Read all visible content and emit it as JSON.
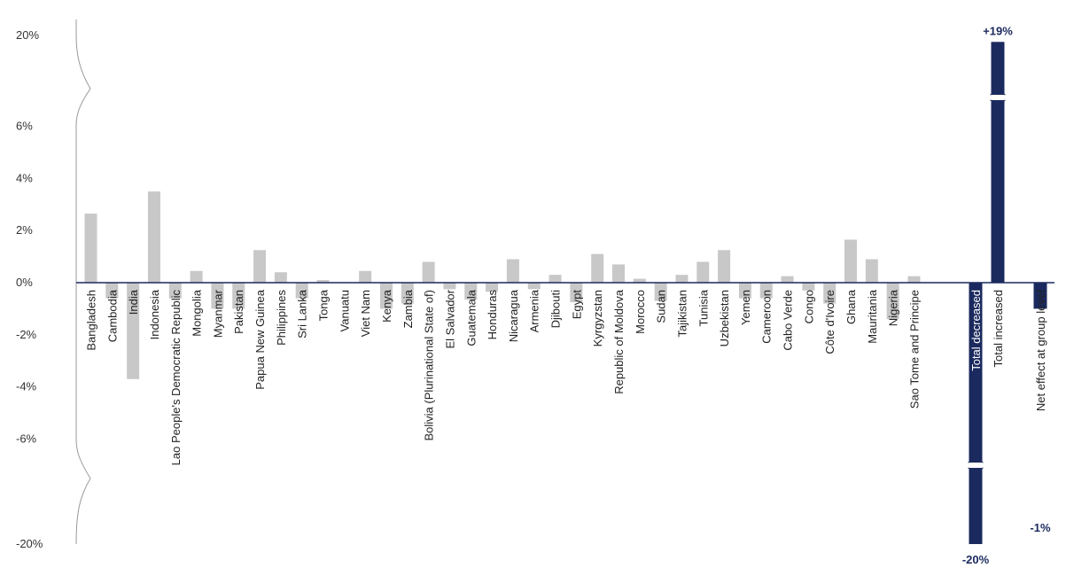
{
  "chart_data": {
    "type": "bar",
    "title": "",
    "xlabel": "",
    "ylabel": "",
    "y_ticks": [
      "20%",
      "6%",
      "4%",
      "2%",
      "0%",
      "-2%",
      "-4%",
      "-6%",
      "-20%"
    ],
    "y_axis_break": "broken axis between 6% and 20% and between -6% and -20%",
    "grid": false,
    "colors": {
      "country_bars": "#c8c8c8",
      "total_bars": "#1b2a5e",
      "axis": "#1b2a5e",
      "break_line": "#999999"
    },
    "categories": [
      "Bangladesh",
      "Cambodia",
      "India",
      "Indonesia",
      "Lao People's Democratic Republic",
      "Mongolia",
      "Myanmar",
      "Pakistan",
      "Papua New Guinea",
      "Philippines",
      "Sri Lanka",
      "Tonga",
      "Vanuatu",
      "Viet Nam",
      "Kenya",
      "Zambia",
      "Bolivia (Plurinational State of)",
      "El Salvador",
      "Guatemala",
      "Honduras",
      "Nicaragua",
      "Armenia",
      "Djibouti",
      "Egypt",
      "Kyrgyzstan",
      "Republic of Moldova",
      "Morocco",
      "Sudan",
      "Tajikistan",
      "Tunisia",
      "Uzbekistan",
      "Yemen",
      "Cameroon",
      "Cabo Verde",
      "Congo",
      "Côte d'Ivoire",
      "Ghana",
      "Mauritania",
      "Nigeria",
      "Sao Tome and Principe"
    ],
    "values": [
      2.65,
      -0.6,
      -3.7,
      3.5,
      -0.6,
      0.45,
      -1.0,
      -1.0,
      1.25,
      0.4,
      -0.6,
      0.1,
      0,
      0.45,
      -1.0,
      -0.8,
      0.8,
      -0.25,
      -0.65,
      -0.35,
      0.9,
      -0.25,
      0.3,
      -0.75,
      1.1,
      0.7,
      0.15,
      -0.7,
      0.3,
      0.8,
      1.25,
      -0.6,
      -0.6,
      0.25,
      -0.3,
      -0.8,
      1.65,
      0.9,
      -1.4,
      0.25
    ],
    "totals": [
      {
        "name": "Total decreased",
        "value": -20,
        "label": "-20%"
      },
      {
        "name": "Total increased",
        "value": 19,
        "label": "+19%"
      },
      {
        "name": "Net effect at group level",
        "value": -1,
        "label": "-1%"
      }
    ]
  }
}
